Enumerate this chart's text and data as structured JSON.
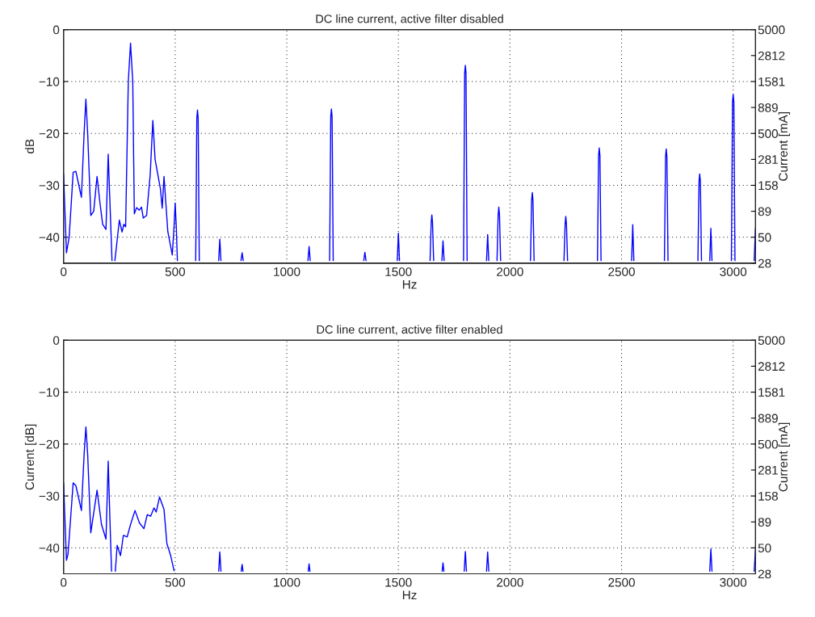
{
  "chart_data": [
    {
      "type": "line",
      "title": "DC line current, active filter disabled",
      "xlabel": "Hz",
      "ylabel": "dB",
      "y2label": "Current [mA]",
      "xlim": [
        0,
        3100
      ],
      "xticks": [
        0,
        500,
        1000,
        1500,
        2000,
        2500,
        3000
      ],
      "ylim": [
        -45,
        0
      ],
      "yticks": [
        -40,
        -30,
        -20,
        -10,
        0
      ],
      "y2lim": [
        28.12,
        5000
      ],
      "y2ticks": [
        {
          "value": 28.12,
          "label": "28"
        },
        50,
        {
          "value": 88.91,
          "label": "89"
        },
        {
          "value": 158.1,
          "label": "158"
        },
        {
          "value": 281.2,
          "label": "281"
        },
        500,
        {
          "value": 889.1,
          "label": "889"
        },
        {
          "value": 1581.1,
          "label": "1581"
        },
        {
          "value": 2811.7,
          "label": "2812"
        },
        5000
      ],
      "log": "y2",
      "grid": true,
      "legend": false,
      "series": [
        {
          "color": "#0000ff",
          "x": [
            0,
            13,
            25,
            43,
            55,
            80,
            92,
            100,
            108,
            122,
            135,
            150,
            162,
            175,
            190,
            200,
            210,
            217,
            223,
            230,
            250,
            262,
            270,
            278,
            290,
            300,
            310,
            317,
            327,
            339,
            349,
            357,
            372,
            388,
            400,
            410,
            434,
            442,
            450,
            467,
            487,
            495,
            500,
            505,
            510,
            520,
            592,
            597,
            600,
            603,
            608,
            620,
            695,
            700,
            705,
            715,
            795,
            800,
            805,
            815,
            1095,
            1100,
            1105,
            1115,
            1192,
            1197,
            1200,
            1203,
            1208,
            1220,
            1345,
            1350,
            1355,
            1365,
            1495,
            1500,
            1505,
            1515,
            1642,
            1647,
            1650,
            1653,
            1658,
            1670,
            1695,
            1700,
            1705,
            1715,
            1792,
            1797,
            1800,
            1803,
            1808,
            1820,
            1895,
            1900,
            1905,
            1915,
            1942,
            1947,
            1950,
            1953,
            1958,
            1970,
            2092,
            2097,
            2100,
            2103,
            2108,
            2120,
            2242,
            2247,
            2250,
            2253,
            2258,
            2270,
            2392,
            2397,
            2400,
            2403,
            2408,
            2420,
            2545,
            2550,
            2555,
            2565,
            2692,
            2697,
            2700,
            2703,
            2708,
            2720,
            2842,
            2847,
            2850,
            2853,
            2858,
            2870,
            2895,
            2900,
            2905,
            2915,
            2992,
            2997,
            3000,
            3003,
            3008,
            3020,
            3094,
            3100
          ],
          "values": [
            -27.8,
            -43,
            -40,
            -27.5,
            -27.3,
            -32.3,
            -20,
            -13.4,
            -20,
            -35.8,
            -35,
            -28.3,
            -33,
            -37.5,
            -38.5,
            -24,
            -36,
            -44.5,
            null,
            -44.5,
            -36.7,
            -39,
            -37.5,
            -38,
            -10,
            -2.6,
            -10,
            -35.5,
            -34.3,
            -34.8,
            -34.2,
            -36.3,
            -35.8,
            -28,
            -17.5,
            -25,
            -30.7,
            -34.4,
            -28.3,
            -38.9,
            -43.4,
            -38,
            -33.4,
            -38,
            -44.5,
            null,
            -44.5,
            -17,
            -15.5,
            -17,
            -44.5,
            null,
            -44.5,
            -40.4,
            -44.5,
            null,
            -44.5,
            -43,
            -44.5,
            null,
            -44.5,
            -41.8,
            -44.5,
            null,
            -44.5,
            -16.8,
            -15.3,
            -16.8,
            -44.5,
            null,
            -44.5,
            -42.9,
            -44.5,
            null,
            -44.5,
            -39.2,
            -44.5,
            null,
            -44.5,
            -37.2,
            -35.7,
            -37.2,
            -44.5,
            null,
            -44.5,
            -40.7,
            -44.5,
            null,
            -44.5,
            -8.4,
            -6.9,
            -8.4,
            -44.5,
            null,
            -44.5,
            -39.5,
            -44.5,
            null,
            -44.5,
            -35.7,
            -34.2,
            -35.7,
            -44.5,
            null,
            -44.5,
            -32.9,
            -31.4,
            -32.9,
            -44.5,
            null,
            -44.5,
            -37.5,
            -36,
            -37.5,
            -44.5,
            null,
            -44.5,
            -24.3,
            -22.8,
            -24.3,
            -44.5,
            null,
            -44.5,
            -37.6,
            -44.5,
            null,
            -44.5,
            -24.5,
            -23,
            -24.5,
            -44.5,
            null,
            -44.5,
            -29.3,
            -27.8,
            -29.3,
            -44.5,
            null,
            -44.5,
            -38.3,
            -44.5,
            null,
            -44.5,
            -14,
            -12.5,
            -14,
            -44.5,
            null,
            -44.5,
            -38.3
          ]
        }
      ]
    },
    {
      "type": "line",
      "title": "DC line current, active filter enabled",
      "xlabel": "Hz",
      "ylabel": "Current [dB]",
      "y2label": "Current [mA]",
      "xlim": [
        0,
        3100
      ],
      "xticks": [
        0,
        500,
        1000,
        1500,
        2000,
        2500,
        3000
      ],
      "ylim": [
        -45,
        0
      ],
      "yticks": [
        -40,
        -30,
        -20,
        -10,
        0
      ],
      "y2lim": [
        28.12,
        5000
      ],
      "y2ticks": [
        {
          "value": 28.12,
          "label": "28"
        },
        50,
        {
          "value": 88.91,
          "label": "89"
        },
        {
          "value": 158.1,
          "label": "158"
        },
        {
          "value": 281.2,
          "label": "281"
        },
        500,
        {
          "value": 889.1,
          "label": "889"
        },
        {
          "value": 1581.1,
          "label": "1581"
        },
        {
          "value": 2811.7,
          "label": "2812"
        },
        5000
      ],
      "log": "y2",
      "grid": true,
      "legend": false,
      "series": [
        {
          "color": "#0000ff",
          "x": [
            0,
            13,
            20,
            43,
            55,
            80,
            92,
            100,
            108,
            122,
            150,
            170,
            190,
            200,
            208,
            215,
            222,
            232,
            240,
            255,
            268,
            285,
            300,
            320,
            340,
            360,
            375,
            390,
            405,
            415,
            430,
            450,
            463,
            480,
            495,
            505,
            695,
            700,
            705,
            715,
            796,
            800,
            804,
            815,
            1096,
            1100,
            1104,
            1115,
            1696,
            1700,
            1704,
            1715,
            1795,
            1800,
            1805,
            1815,
            1895,
            1900,
            1905,
            1915,
            2895,
            2900,
            2905,
            2915,
            3094,
            3100
          ],
          "values": [
            -27.5,
            -42.4,
            -41.2,
            -27.5,
            -28,
            -32.8,
            -22,
            -16.7,
            -22,
            -37.1,
            -28.9,
            -35.5,
            -38.3,
            -23.3,
            -35,
            -44.5,
            null,
            -44.5,
            -39.5,
            -41.5,
            -37.6,
            -37.9,
            -35.5,
            -32.8,
            -35.2,
            -36.3,
            -33.6,
            -33.9,
            -32.3,
            -33.1,
            -30.2,
            -32.6,
            -39.2,
            -41.5,
            -44.4,
            null,
            -44.5,
            -40.8,
            -44.5,
            null,
            -44.5,
            -43.2,
            -44.5,
            null,
            -44.5,
            -43.1,
            -44.5,
            null,
            -44.5,
            -42.9,
            -44.5,
            null,
            -44.5,
            -40.7,
            -44.5,
            null,
            -44.5,
            -40.8,
            -44.5,
            null,
            -44.5,
            -40.2,
            -44.5,
            null,
            -44.5,
            -40.3
          ]
        }
      ]
    }
  ]
}
